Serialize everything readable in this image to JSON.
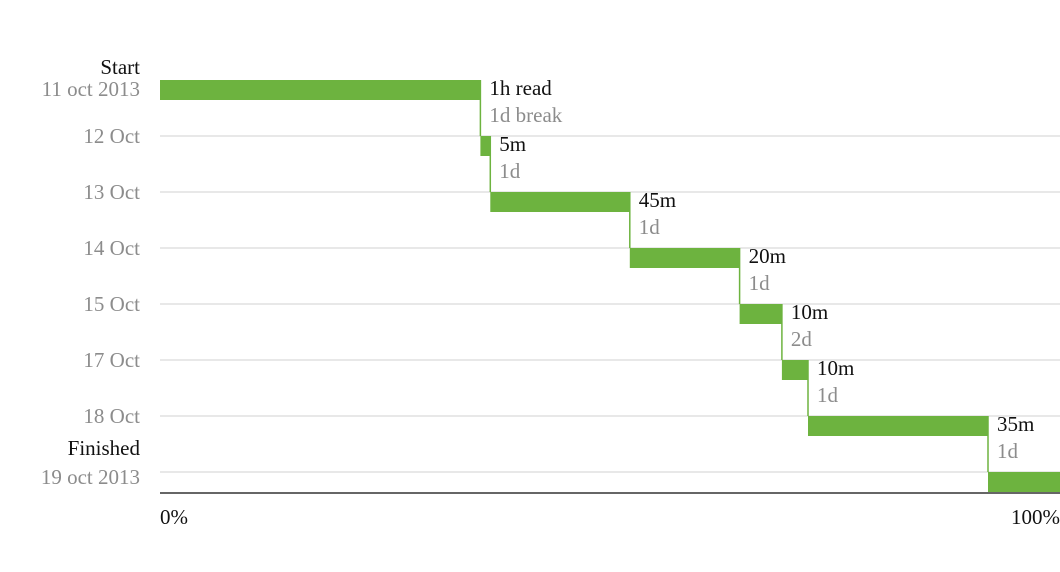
{
  "chart_data": {
    "type": "bar",
    "start_label": "Start",
    "start_date": "11 oct 2013",
    "finish_label": "Finished",
    "finish_date": "19 oct 2013",
    "date_rows": [
      "12 Oct",
      "13 Oct",
      "14 Oct",
      "15 Oct",
      "17 Oct",
      "18 Oct"
    ],
    "x_axis": {
      "ticks": [
        "0%",
        "100%"
      ],
      "range": [
        0,
        100
      ]
    },
    "sessions": [
      {
        "start_pct": 0.0,
        "end_pct": 35.6,
        "duration": "1h read",
        "gap": "1d break"
      },
      {
        "start_pct": 35.6,
        "end_pct": 36.7,
        "duration": "5m",
        "gap": "1d"
      },
      {
        "start_pct": 36.7,
        "end_pct": 52.2,
        "duration": "45m",
        "gap": "1d"
      },
      {
        "start_pct": 52.2,
        "end_pct": 64.4,
        "duration": "20m",
        "gap": "1d"
      },
      {
        "start_pct": 64.4,
        "end_pct": 69.1,
        "duration": "10m",
        "gap": "2d"
      },
      {
        "start_pct": 69.1,
        "end_pct": 72.0,
        "duration": "10m",
        "gap": "1d"
      },
      {
        "start_pct": 72.0,
        "end_pct": 92.0,
        "duration": "35m",
        "gap": "1d"
      },
      {
        "start_pct": 92.0,
        "end_pct": 100.0,
        "duration": "",
        "gap": ""
      }
    ],
    "colors": {
      "bar": "#6db33f",
      "grid": "#e0e0e0",
      "axis": "#333333",
      "muted_text": "#8c8c8c",
      "text": "#111111"
    }
  }
}
